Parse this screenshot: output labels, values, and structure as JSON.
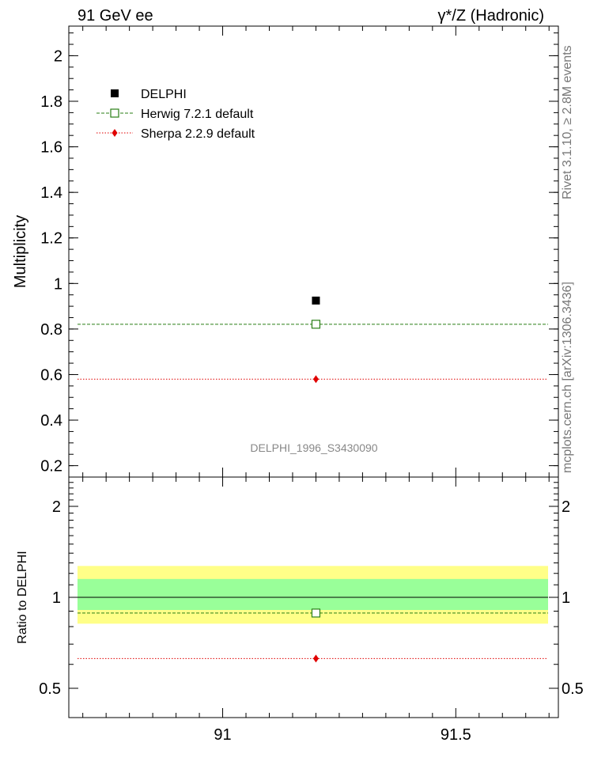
{
  "header": {
    "left_title": "91 GeV ee",
    "right_title": "γ*/Z (Hadronic)"
  },
  "side_labels": {
    "rivet": "Rivet 3.1.10, ≥ 2.8M events",
    "mcplots": "mcplots.cern.ch [arXiv:1306.3436]"
  },
  "watermark": "DELPHI_1996_S3430090",
  "chart_data": [
    {
      "type": "scatter",
      "panel": "main",
      "ylabel": "Multiplicity",
      "xlim": [
        90.67,
        91.72
      ],
      "ylim": [
        0.15,
        2.13
      ],
      "yticks": [
        0.2,
        0.4,
        0.6,
        0.8,
        1.0,
        1.2,
        1.4,
        1.6,
        1.8,
        2.0
      ],
      "ytick_labels": [
        "0.2",
        "0.4",
        "0.6",
        "0.8",
        "1",
        "1.2",
        "1.4",
        "1.6",
        "1.8",
        "2"
      ],
      "legend_position": "top-left",
      "series": [
        {
          "name": "DELPHI",
          "style": "data",
          "color": "#000000",
          "x": [
            91.2
          ],
          "y": [
            0.925
          ]
        },
        {
          "name": "Herwig 7.2.1 default",
          "style": "open-square-dashed",
          "color": "#2a7f16",
          "x": [
            91.2
          ],
          "y": [
            0.821
          ]
        },
        {
          "name": "Sherpa 2.2.9 default",
          "style": "diamond-dotted",
          "color": "#e00000",
          "x": [
            91.2
          ],
          "y": [
            0.58
          ]
        }
      ]
    },
    {
      "type": "scatter",
      "panel": "ratio",
      "ylabel": "Ratio to DELPHI",
      "log_y": true,
      "xlim": [
        90.67,
        91.72
      ],
      "ylim": [
        0.4,
        2.5
      ],
      "yticks": [
        0.5,
        1,
        2
      ],
      "ytick_labels": [
        "0.5",
        "1",
        "2"
      ],
      "xticks": [
        91,
        91.5
      ],
      "xtick_labels": [
        "91",
        "91.5"
      ],
      "bands": [
        {
          "low": 0.818,
          "high": 1.27,
          "color": "#ffff88"
        },
        {
          "low": 0.908,
          "high": 1.15,
          "color": "#99ff99"
        }
      ],
      "series": [
        {
          "name": "Herwig 7.2.1 default",
          "style": "open-square-dashed",
          "color": "#2a7f16",
          "x": [
            91.2
          ],
          "y": [
            0.887
          ]
        },
        {
          "name": "Sherpa 2.2.9 default",
          "style": "diamond-dotted",
          "color": "#e00000",
          "x": [
            91.2
          ],
          "y": [
            0.627
          ]
        }
      ]
    }
  ]
}
